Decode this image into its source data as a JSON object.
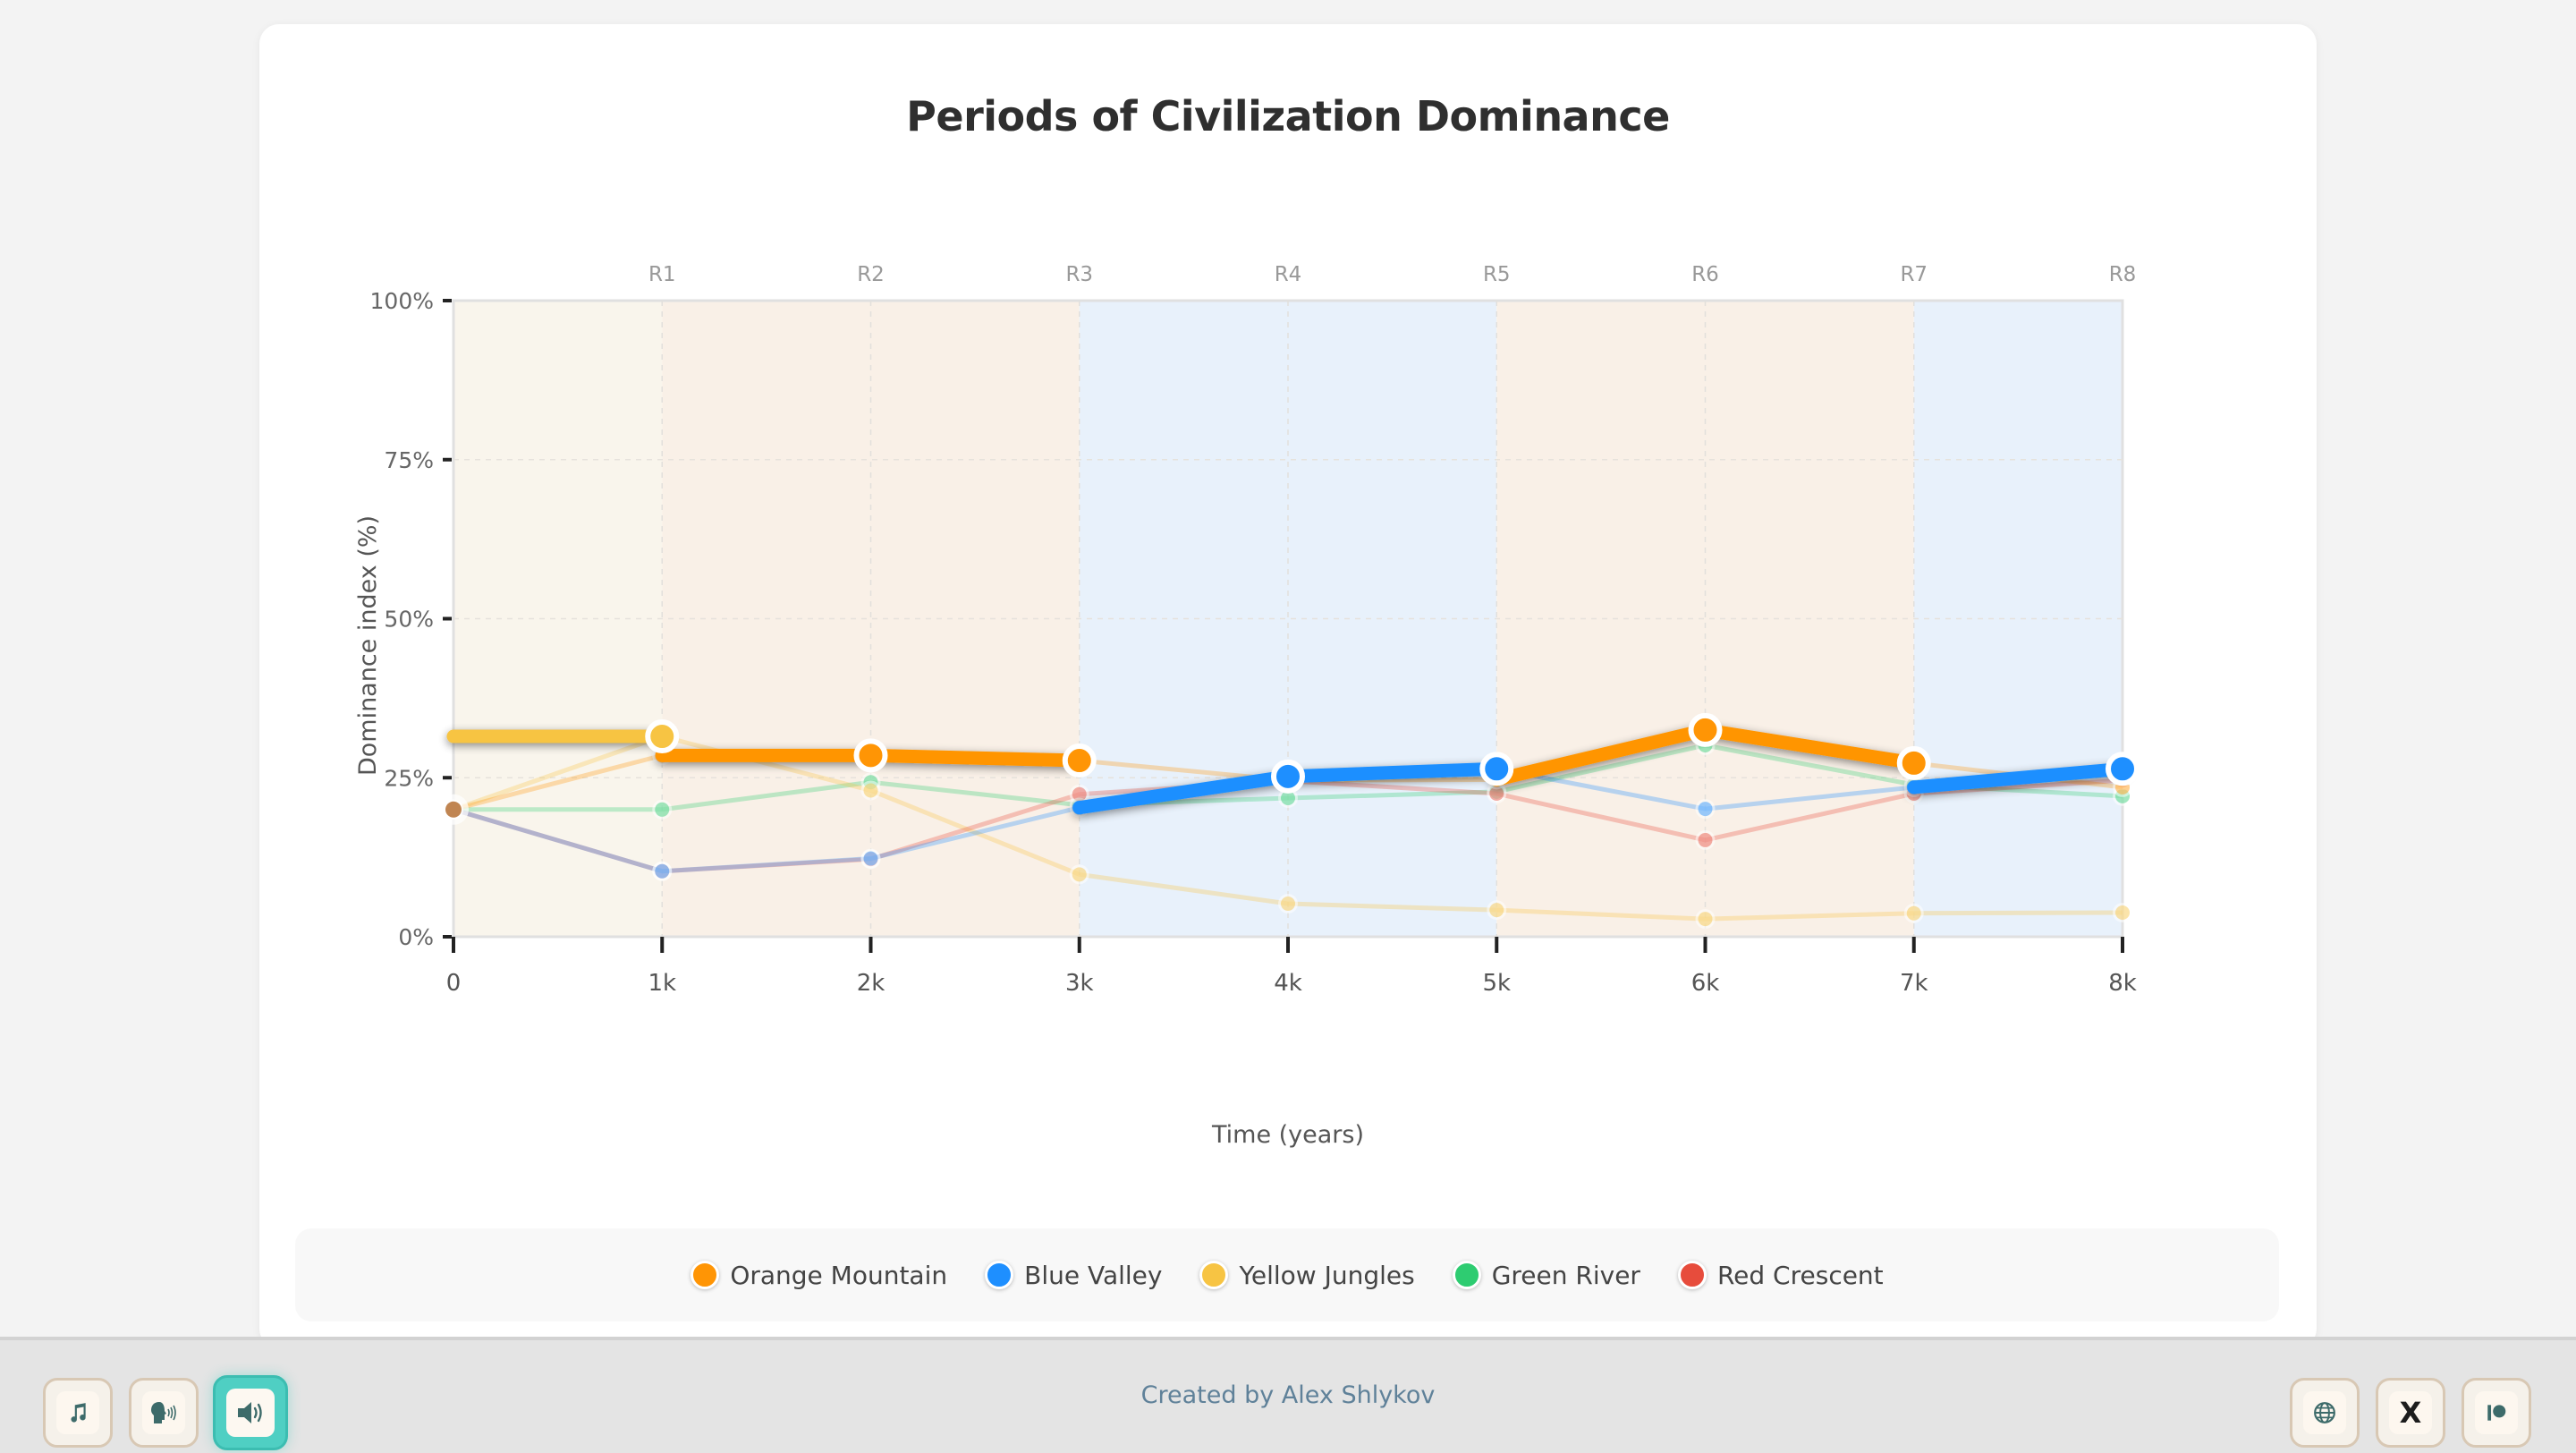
{
  "chart_data": {
    "type": "line",
    "title": "Periods of Civilization Dominance",
    "xlabel": "Time (years)",
    "ylabel": "Dominance index (%)",
    "xlim": [
      0,
      8000
    ],
    "ylim": [
      0,
      100
    ],
    "x": [
      0,
      1000,
      2000,
      3000,
      4000,
      5000,
      6000,
      7000,
      8000
    ],
    "x_tick_labels": [
      "0",
      "1k",
      "2k",
      "3k",
      "4k",
      "5k",
      "6k",
      "7k",
      "8k"
    ],
    "y_ticks": [
      0,
      25,
      50,
      75,
      100
    ],
    "y_tick_labels": [
      "0%",
      "25%",
      "50%",
      "75%",
      "100%"
    ],
    "top_tick_labels": [
      "R1",
      "R2",
      "R3",
      "R4",
      "R5",
      "R6",
      "R7",
      "R8"
    ],
    "grid": true,
    "legend_position": "bottom",
    "series": [
      {
        "name": "Orange Mountain",
        "color": "#ff9505",
        "values": [
          20,
          28.5,
          28.5,
          27.7,
          24.6,
          24.7,
          32.5,
          27.3,
          23.5
        ]
      },
      {
        "name": "Blue Valley",
        "color": "#1e8fff",
        "values": [
          20,
          10.3,
          12.3,
          20.3,
          25.2,
          26.4,
          20.1,
          23.5,
          26.4
        ]
      },
      {
        "name": "Yellow Jungles",
        "color": "#f7c443",
        "values": [
          20,
          31.5,
          23.0,
          9.8,
          5.2,
          4.2,
          2.8,
          3.7,
          3.8
        ]
      },
      {
        "name": "Green River",
        "color": "#2ecc71",
        "values": [
          20,
          20,
          24.3,
          20.7,
          21.8,
          22.8,
          30.1,
          23.9,
          22.1
        ]
      },
      {
        "name": "Red Crescent",
        "color": "#e74c3c",
        "values": [
          20,
          10.3,
          12.2,
          22.4,
          24.5,
          22.5,
          15.2,
          22.5,
          24.6
        ]
      }
    ],
    "periods": [
      {
        "label": "R1",
        "start": 0,
        "end": 1000,
        "leader": "Yellow Jungles",
        "leader_value": 31.5,
        "shade": "#f9f5ec"
      },
      {
        "label": "R2",
        "start": 1000,
        "end": 2000,
        "leader": "Orange Mountain",
        "shade": "#f9f0e7"
      },
      {
        "label": "R3",
        "start": 2000,
        "end": 3000,
        "leader": "Orange Mountain",
        "shade": "#f9f0e7"
      },
      {
        "label": "R4",
        "start": 3000,
        "end": 4000,
        "leader": "Blue Valley",
        "shade": "#e8f1fb"
      },
      {
        "label": "R5",
        "start": 4000,
        "end": 5000,
        "leader": "Blue Valley",
        "shade": "#e8f1fb"
      },
      {
        "label": "R6",
        "start": 5000,
        "end": 6000,
        "leader": "Orange Mountain",
        "shade": "#f9f0e7"
      },
      {
        "label": "R7",
        "start": 6000,
        "end": 7000,
        "leader": "Orange Mountain",
        "shade": "#f9f0e7"
      },
      {
        "label": "R8",
        "start": 7000,
        "end": 8000,
        "leader": "Blue Valley",
        "shade": "#e8f1fb"
      }
    ]
  },
  "legend": [
    {
      "label": "Orange Mountain",
      "color": "#ff9505"
    },
    {
      "label": "Blue Valley",
      "color": "#1e8fff"
    },
    {
      "label": "Yellow Jungles",
      "color": "#f7c443"
    },
    {
      "label": "Green River",
      "color": "#2ecc71"
    },
    {
      "label": "Red Crescent",
      "color": "#e74c3c"
    }
  ],
  "footer": {
    "credit": "Created by Alex Shlykov",
    "left_buttons": [
      {
        "icon": "music-note-icon",
        "active": false
      },
      {
        "icon": "speaking-head-icon",
        "active": false
      },
      {
        "icon": "speaker-icon",
        "active": true
      }
    ],
    "right_buttons": [
      {
        "icon": "globe-icon"
      },
      {
        "icon": "x-logo-icon",
        "glyph": "X"
      },
      {
        "icon": "patreon-icon"
      }
    ],
    "accent": "#4fcfc3"
  }
}
